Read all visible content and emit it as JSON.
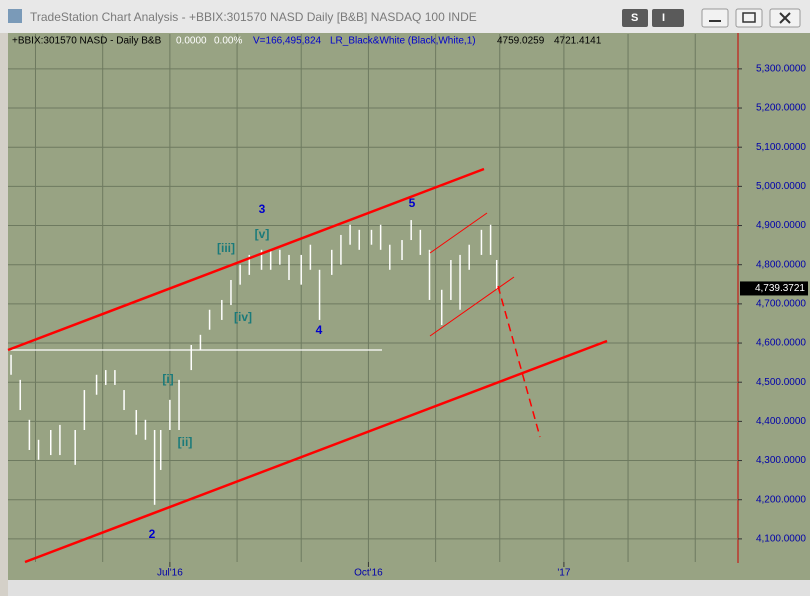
{
  "window_title": "TradeStation Chart Analysis - +BBIX:301570 NASD Daily [B&B] NASDAQ 100 INDE",
  "buttons": [
    "S",
    "I"
  ],
  "info": {
    "symbol": "+BBIX:301570 NASD - Daily  B&B",
    "change": "0.0000",
    "change_pct": "0.00%",
    "volume": "V=166,495,824",
    "study": "LR_Black&White (Black,White,1)",
    "high": "4759.0259",
    "low": "4721.4141"
  },
  "chart_data": {
    "type": "ohlc",
    "x": [
      1,
      4,
      7,
      10,
      14,
      17,
      22,
      25,
      29,
      32,
      35,
      38,
      42,
      45,
      48,
      50,
      53,
      56,
      60,
      63,
      66,
      70,
      73,
      76,
      79,
      83,
      86,
      89,
      92,
      96,
      99,
      102,
      106,
      109,
      112,
      115,
      119,
      122,
      125,
      129,
      132,
      135,
      138,
      142,
      145,
      148,
      151,
      155,
      158,
      160
    ],
    "high": [
      4570,
      4506,
      4404,
      4353,
      4378,
      4391,
      4378,
      4480,
      4519,
      4531,
      4531,
      4480,
      4429,
      4404,
      4378,
      4378,
      4455,
      4506,
      4595,
      4621,
      4685,
      4710,
      4761,
      4800,
      4825,
      4838,
      4838,
      4838,
      4825,
      4825,
      4851,
      4787,
      4838,
      4876,
      4902,
      4889,
      4889,
      4902,
      4851,
      4863,
      4914,
      4889,
      4838,
      4736,
      4812,
      4825,
      4851,
      4889,
      4902,
      4812
    ],
    "low": [
      4519,
      4429,
      4327,
      4302,
      4314,
      4314,
      4289,
      4378,
      4468,
      4493,
      4493,
      4429,
      4366,
      4353,
      4187,
      4276,
      4378,
      4378,
      4531,
      4583,
      4634,
      4659,
      4697,
      4749,
      4774,
      4787,
      4787,
      4800,
      4761,
      4749,
      4787,
      4659,
      4774,
      4800,
      4851,
      4838,
      4851,
      4838,
      4787,
      4812,
      4863,
      4825,
      4710,
      4646,
      4710,
      4685,
      4787,
      4825,
      4825,
      4736
    ],
    "color": "#ffffff",
    "xlim": [
      0,
      239
    ],
    "xticks": [
      {
        "value": 53,
        "label": "Jul'16"
      },
      {
        "value": 118,
        "label": "Oct'16"
      },
      {
        "value": 182,
        "label": "'17"
      }
    ],
    "xgrid": [
      9,
      31,
      53,
      75,
      96,
      118,
      140,
      161,
      182,
      203,
      225
    ],
    "ylim": [
      4041,
      5389
    ],
    "yticks": [
      {
        "value": 4100,
        "label": "4,100.0000"
      },
      {
        "value": 4200,
        "label": "4,200.0000"
      },
      {
        "value": 4300,
        "label": "4,300.0000"
      },
      {
        "value": 4400,
        "label": "4,400.0000"
      },
      {
        "value": 4500,
        "label": "4,500.0000"
      },
      {
        "value": 4600,
        "label": "4,600.0000"
      },
      {
        "value": 4700,
        "label": "4,700.0000"
      },
      {
        "value": 4800,
        "label": "4,800.0000"
      },
      {
        "value": 4900,
        "label": "4,900.0000"
      },
      {
        "value": 5000,
        "label": "5,000.0000"
      },
      {
        "value": 5100,
        "label": "5,100.0000"
      },
      {
        "value": 5200,
        "label": "5,200.0000"
      },
      {
        "value": 5300,
        "label": "5,300.0000"
      }
    ],
    "last_price": {
      "value": 4739.3721,
      "label": "4,739.3721"
    },
    "grid": true,
    "annotations": [
      {
        "text": "3",
        "color": "#0000cc"
      },
      {
        "text": "[iii]",
        "color": "#1a7a7a"
      },
      {
        "text": "[v]",
        "color": "#1a7a7a"
      },
      {
        "text": "[iv]",
        "color": "#1a7a7a"
      },
      {
        "text": "4",
        "color": "#0000cc"
      },
      {
        "text": "5",
        "color": "#0000cc"
      },
      {
        "text": "[i]",
        "color": "#1a7a7a"
      },
      {
        "text": "[ii]",
        "color": "#1a7a7a"
      },
      {
        "text": "2",
        "color": "#0000cc"
      }
    ]
  }
}
